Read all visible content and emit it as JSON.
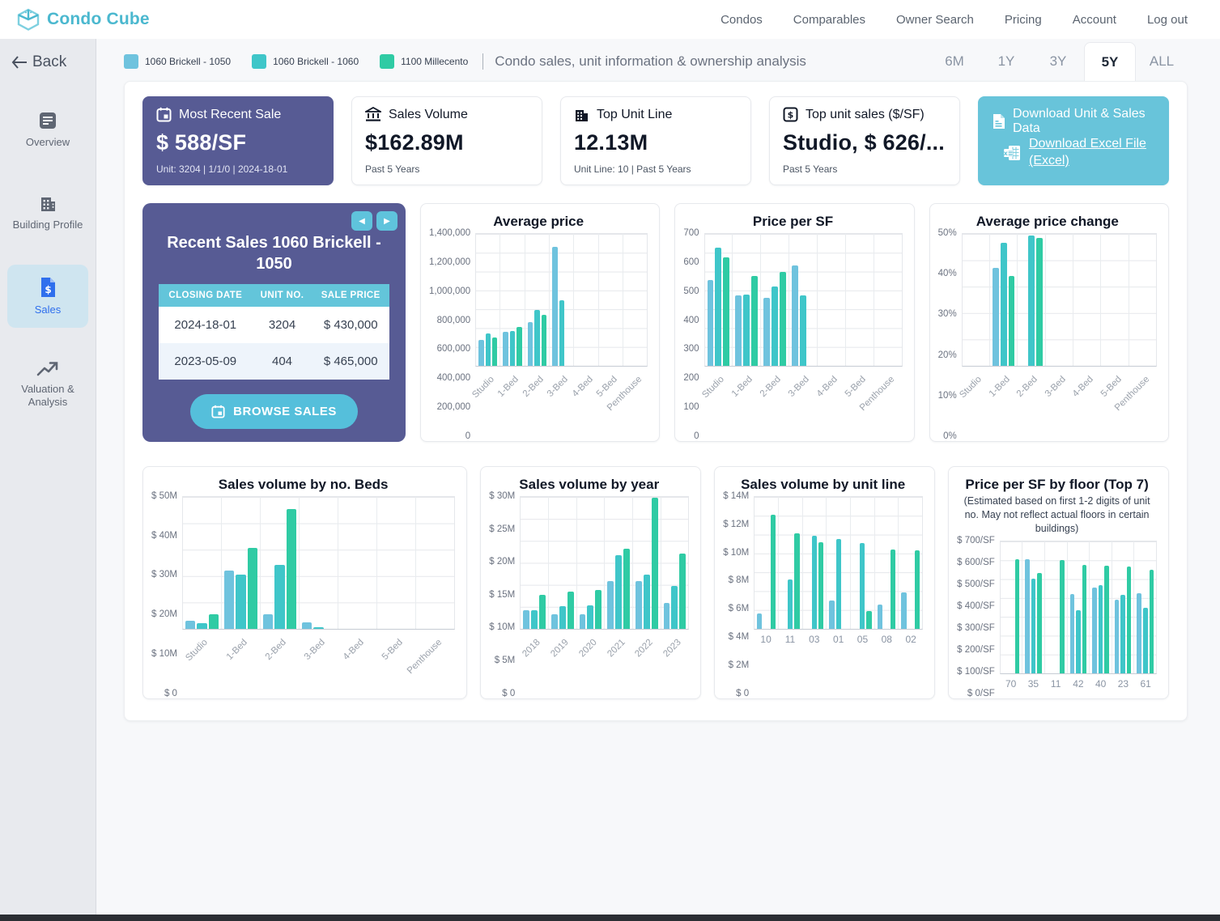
{
  "header": {
    "brand": "Condo Cube",
    "nav": [
      {
        "label": "Condos"
      },
      {
        "label": "Comparables"
      },
      {
        "label": "Owner Search"
      },
      {
        "label": "Pricing"
      },
      {
        "label": "Account"
      },
      {
        "label": "Log out"
      }
    ]
  },
  "sidebar": {
    "back_label": "Back",
    "items": [
      {
        "label": "Overview"
      },
      {
        "label": "Building Profile"
      },
      {
        "label": "Sales"
      },
      {
        "label": "Valuation & Analysis"
      }
    ]
  },
  "toolbar": {
    "legend": [
      {
        "label": "1060 Brickell - 1050",
        "color": "#6fc3de"
      },
      {
        "label": "1060 Brickell - 1060",
        "color": "#3fc6c9"
      },
      {
        "label": "1100 Millecento",
        "color": "#2fcba4"
      }
    ],
    "title": "Condo sales, unit information & ownership analysis",
    "tabs": [
      {
        "label": "6M"
      },
      {
        "label": "1Y"
      },
      {
        "label": "3Y"
      },
      {
        "label": "5Y",
        "active": true
      },
      {
        "label": "ALL"
      }
    ]
  },
  "stats": [
    {
      "title": "Most Recent Sale",
      "value": "$ 588/SF",
      "sub": "Unit: 3204 | 1/1/0 | 2024-18-01"
    },
    {
      "title": "Sales Volume",
      "value": "$162.89M",
      "sub": "Past 5 Years"
    },
    {
      "title": "Top Unit Line",
      "value": "12.13M",
      "sub": "Unit Line: 10 | Past 5 Years"
    },
    {
      "title": "Top unit sales ($/SF)",
      "value": "Studio, $ 626/...",
      "sub": "Past 5 Years"
    },
    {
      "title": "Download Unit & Sales Data",
      "link_label": "Download Excel File (Excel)"
    }
  ],
  "recent_sales": {
    "title": "Recent Sales 1060 Brickell - 1050",
    "columns": [
      "Closing Date",
      "Unit No.",
      "Sale Price"
    ],
    "rows": [
      {
        "date": "2024-18-01",
        "unit": "3204",
        "price": "$ 430,000"
      },
      {
        "date": "2023-05-09",
        "unit": "404",
        "price": "$ 465,000"
      }
    ],
    "browse_label": "BROWSE SALES"
  },
  "chart_data": [
    {
      "type": "bar",
      "title": "Average price",
      "categories": [
        "Studio",
        "1-Bed",
        "2-Bed",
        "3-Bed",
        "4-Bed",
        "5-Bed",
        "Penthouse"
      ],
      "ymax": 1400000,
      "ticks": [
        "1,400,000",
        "1,200,000",
        "1,000,000",
        "800,000",
        "600,000",
        "400,000",
        "200,000",
        "0"
      ],
      "rotate_labels": true,
      "series": [
        {
          "name": "1060 Brickell - 1050",
          "color": "#6fc3de",
          "values": [
            275000,
            360000,
            465000,
            1260000,
            null,
            null,
            null
          ]
        },
        {
          "name": "1060 Brickell - 1060",
          "color": "#3fc6c9",
          "values": [
            345000,
            370000,
            590000,
            700000,
            null,
            null,
            null
          ]
        },
        {
          "name": "1100 Millecento",
          "color": "#2fcba4",
          "values": [
            305000,
            410000,
            545000,
            null,
            null,
            null,
            null
          ]
        }
      ]
    },
    {
      "type": "bar",
      "title": "Price per SF",
      "categories": [
        "Studio",
        "1-Bed",
        "2-Bed",
        "3-Bed",
        "4-Bed",
        "5-Bed",
        "Penthouse"
      ],
      "ymax": 700,
      "ticks": [
        "700",
        "600",
        "500",
        "400",
        "300",
        "200",
        "100",
        "0"
      ],
      "rotate_labels": true,
      "series": [
        {
          "name": "1060 Brickell - 1050",
          "color": "#6fc3de",
          "values": [
            455,
            372,
            362,
            532,
            null,
            null,
            null
          ]
        },
        {
          "name": "1060 Brickell - 1060",
          "color": "#3fc6c9",
          "values": [
            625,
            378,
            420,
            372,
            null,
            null,
            null
          ]
        },
        {
          "name": "1100 Millecento",
          "color": "#2fcba4",
          "values": [
            575,
            478,
            500,
            null,
            null,
            null,
            null
          ]
        }
      ]
    },
    {
      "type": "bar",
      "title": "Average price change",
      "categories": [
        "Studio",
        "1-Bed",
        "2-Bed",
        "3-Bed",
        "4-Bed",
        "5-Bed",
        "Penthouse"
      ],
      "ymax": 50,
      "ticks": [
        "50%",
        "40%",
        "30%",
        "20%",
        "10%",
        "0%"
      ],
      "rotate_labels": true,
      "series": [
        {
          "name": "1060 Brickell - 1050",
          "color": "#6fc3de",
          "values": [
            null,
            37,
            null,
            null,
            null,
            null,
            null
          ]
        },
        {
          "name": "1060 Brickell - 1060",
          "color": "#3fc6c9",
          "values": [
            null,
            46.5,
            49.5,
            null,
            null,
            null,
            null
          ]
        },
        {
          "name": "1100 Millecento",
          "color": "#2fcba4",
          "values": [
            null,
            34,
            48.5,
            null,
            null,
            null,
            null
          ]
        }
      ]
    },
    {
      "type": "bar",
      "title": "Sales volume by no. Beds",
      "categories": [
        "Studio",
        "1-Bed",
        "2-Bed",
        "3-Bed",
        "4-Bed",
        "5-Bed",
        "Penthouse"
      ],
      "ymax": 50,
      "ticks": [
        "$ 50M",
        "$ 40M",
        "$ 30M",
        "$ 20M",
        "$ 10M",
        "$ 0"
      ],
      "rotate_labels": true,
      "series": [
        {
          "name": "1060 Brickell - 1050",
          "color": "#6fc3de",
          "values": [
            3.2,
            22,
            5.6,
            2.5,
            null,
            null,
            null
          ]
        },
        {
          "name": "1060 Brickell - 1060",
          "color": "#3fc6c9",
          "values": [
            2.0,
            20.5,
            24.3,
            0.7,
            null,
            null,
            null
          ]
        },
        {
          "name": "1100 Millecento",
          "color": "#2fcba4",
          "values": [
            5.5,
            30.7,
            45.4,
            null,
            null,
            null,
            null
          ]
        }
      ]
    },
    {
      "type": "bar",
      "title": "Sales volume by year",
      "categories": [
        "2018",
        "2019",
        "2020",
        "2021",
        "2022",
        "2023"
      ],
      "ymax": 30,
      "ticks": [
        "$ 30M",
        "$ 25M",
        "$ 20M",
        "$ 15M",
        "$ 10M",
        "$ 5M",
        "$ 0"
      ],
      "rotate_labels": true,
      "series": [
        {
          "name": "1060 Brickell - 1050",
          "color": "#6fc3de",
          "values": [
            4.2,
            3.3,
            3.3,
            10.8,
            10.8,
            5.9
          ]
        },
        {
          "name": "1060 Brickell - 1060",
          "color": "#3fc6c9",
          "values": [
            4.2,
            5.2,
            5.3,
            16.8,
            12.3,
            9.8
          ]
        },
        {
          "name": "1100 Millecento",
          "color": "#2fcba4",
          "values": [
            7.7,
            8.4,
            8.9,
            18.2,
            29.8,
            17.2
          ]
        }
      ]
    },
    {
      "type": "bar",
      "title": "Sales volume by unit line",
      "categories": [
        "10",
        "11",
        "03",
        "01",
        "05",
        "08",
        "02"
      ],
      "ymax": 14,
      "ticks": [
        "$ 14M",
        "$ 12M",
        "$ 10M",
        "$ 8M",
        "$ 6M",
        "$ 4M",
        "$ 2M",
        "$ 0"
      ],
      "rotate_labels": false,
      "series": [
        {
          "name": "1060 Brickell - 1050",
          "color": "#6fc3de",
          "values": [
            1.6,
            null,
            null,
            3.0,
            null,
            2.6,
            3.9
          ]
        },
        {
          "name": "1060 Brickell - 1060",
          "color": "#3fc6c9",
          "values": [
            null,
            5.2,
            9.9,
            9.5,
            9.1,
            null,
            null
          ]
        },
        {
          "name": "1100 Millecento",
          "color": "#2fcba4",
          "values": [
            12.1,
            10.1,
            9.2,
            null,
            1.9,
            8.4,
            8.3
          ]
        }
      ]
    },
    {
      "type": "bar",
      "title": "Price per SF by floor (Top 7)",
      "subtitle": "(Estimated based on first 1-2 digits of unit no. May not reflect actual floors in certain buildings)",
      "categories": [
        "70",
        "35",
        "11",
        "42",
        "40",
        "23",
        "61"
      ],
      "ymax": 700,
      "ticks": [
        "$ 700/SF",
        "$ 600/SF",
        "$ 500/SF",
        "$ 400/SF",
        "$ 300/SF",
        "$ 200/SF",
        "$ 100/SF",
        "$ 0/SF"
      ],
      "rotate_labels": false,
      "series": [
        {
          "name": "1060 Brickell - 1050",
          "color": "#6fc3de",
          "values": [
            null,
            605,
            null,
            418,
            455,
            390,
            422
          ]
        },
        {
          "name": "1060 Brickell - 1060",
          "color": "#3fc6c9",
          "values": [
            null,
            500,
            null,
            333,
            468,
            413,
            348
          ]
        },
        {
          "name": "1100 Millecento",
          "color": "#2fcba4",
          "values": [
            605,
            530,
            600,
            575,
            570,
            565,
            550
          ]
        }
      ]
    }
  ]
}
